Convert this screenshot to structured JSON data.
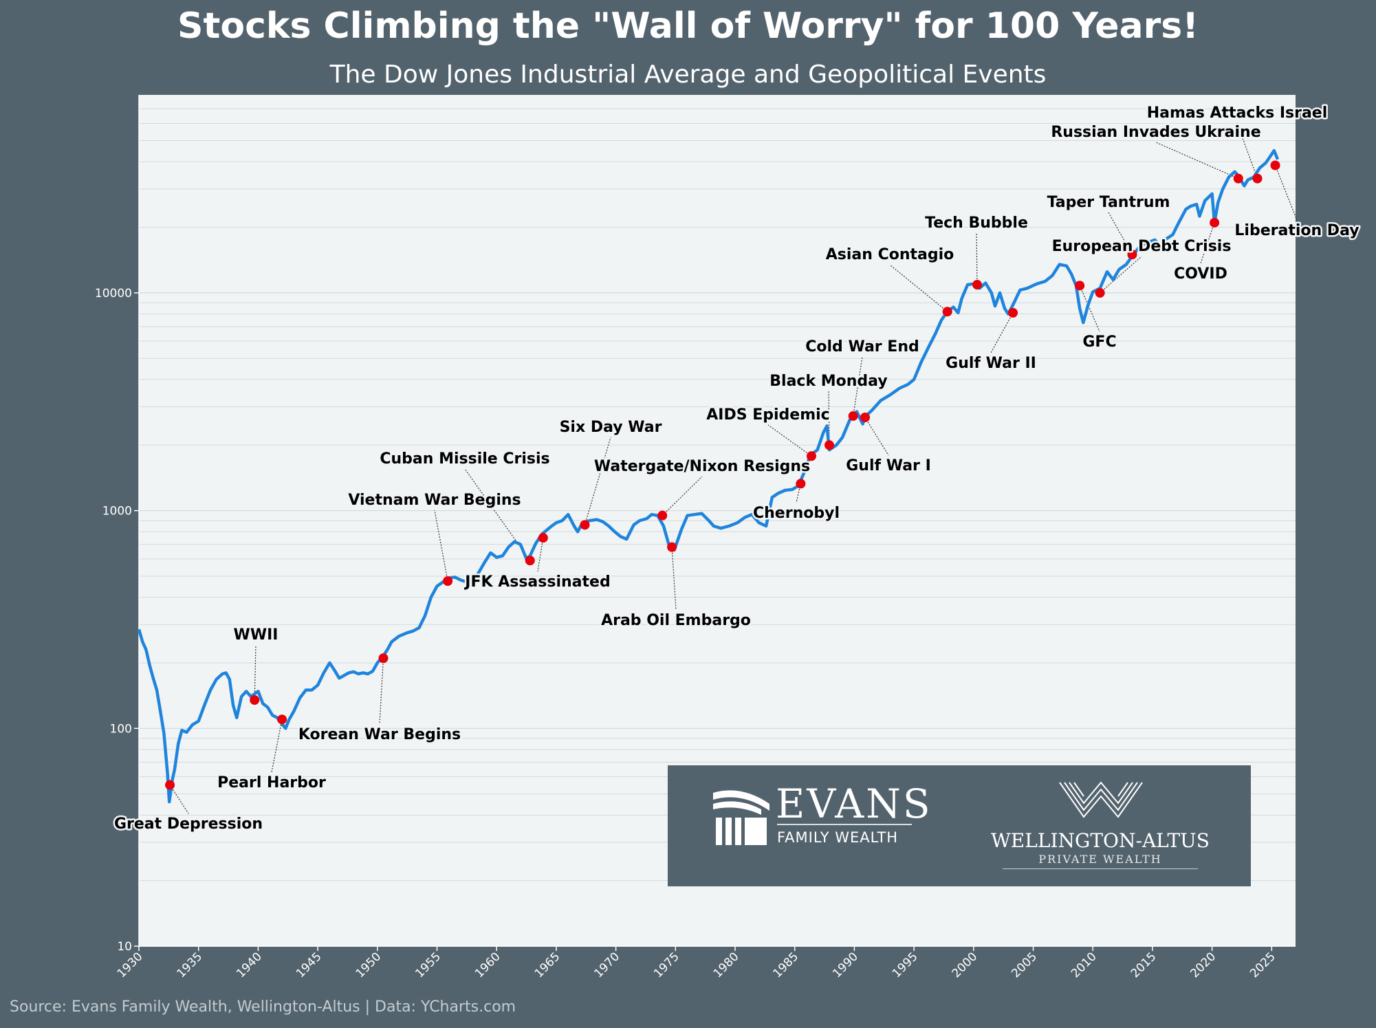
{
  "title": "Stocks Climbing the \"Wall of Worry\" for 100 Years!",
  "subtitle": "The Dow Jones Industrial Average and Geopolitical Events",
  "source": "Source: Evans Family Wealth, Wellington-Altus | Data: YCharts.com",
  "colors": {
    "background": "#53636d",
    "plot_background": "#f1f4f5",
    "line": "#1f84db",
    "event_marker": "#e8000b",
    "grid": "#d3d9dc"
  },
  "logos": {
    "evans": {
      "name": "EVANS",
      "subtitle": "FAMILY WEALTH",
      "icon": "columns-logo-icon"
    },
    "wellington": {
      "name": "WELLINGTON-ALTUS",
      "subtitle": "PRIVATE WEALTH",
      "icon": "chevron-crest-logo-icon"
    }
  },
  "chart_data": {
    "type": "line",
    "title": "Stocks Climbing the \"Wall of Worry\" for 100 Years!",
    "subtitle": "The Dow Jones Industrial Average and Geopolitical Events",
    "xlabel": "",
    "ylabel": "",
    "y_scale": "log",
    "xlim": [
      1930,
      2027
    ],
    "ylim": [
      10,
      70000
    ],
    "x_ticks": [
      1930,
      1935,
      1940,
      1945,
      1950,
      1955,
      1960,
      1965,
      1970,
      1975,
      1980,
      1985,
      1990,
      1995,
      2000,
      2005,
      2010,
      2015,
      2020,
      2025
    ],
    "y_ticks": [
      10,
      100,
      1000,
      10000
    ],
    "grid": true,
    "series": [
      {
        "x": [
          1930.0,
          1930.3,
          1930.6,
          1930.9,
          1931.2,
          1931.5,
          1931.8,
          1932.1,
          1932.4,
          1932.55,
          1932.8,
          1933.0,
          1933.3,
          1933.6,
          1934.0,
          1934.5,
          1935.0,
          1935.5,
          1936.0,
          1936.5,
          1937.0,
          1937.3,
          1937.6,
          1937.9,
          1938.2,
          1938.6,
          1939.0,
          1939.4,
          1939.7,
          1940.0,
          1940.4,
          1940.8,
          1941.2,
          1941.6,
          1942.0,
          1942.3,
          1942.6,
          1943.0,
          1943.5,
          1944.0,
          1944.5,
          1945.0,
          1945.5,
          1946.0,
          1946.4,
          1946.8,
          1947.2,
          1947.6,
          1948.0,
          1948.4,
          1948.8,
          1949.2,
          1949.6,
          1950.0,
          1950.4,
          1950.8,
          1951.2,
          1951.8,
          1952.5,
          1953.0,
          1953.5,
          1954.0,
          1954.5,
          1955.0,
          1955.5,
          1956.0,
          1956.5,
          1957.0,
          1957.5,
          1957.9,
          1958.5,
          1959.0,
          1959.5,
          1960.0,
          1960.5,
          1961.0,
          1961.5,
          1962.0,
          1962.5,
          1962.8,
          1963.3,
          1963.8,
          1964.5,
          1965.0,
          1965.5,
          1966.0,
          1966.5,
          1966.8,
          1967.2,
          1967.8,
          1968.4,
          1968.9,
          1969.4,
          1969.9,
          1970.4,
          1970.9,
          1971.5,
          1972.0,
          1972.6,
          1973.0,
          1973.5,
          1974.0,
          1974.5,
          1974.9,
          1975.5,
          1976.0,
          1976.6,
          1977.2,
          1977.8,
          1978.2,
          1978.8,
          1979.5,
          1980.2,
          1980.8,
          1981.4,
          1982.0,
          1982.6,
          1983.1,
          1983.6,
          1984.2,
          1984.8,
          1985.3,
          1985.8,
          1986.3,
          1986.9,
          1987.4,
          1987.7,
          1987.9,
          1988.5,
          1989.0,
          1989.6,
          1990.2,
          1990.7,
          1990.9,
          1991.5,
          1992.2,
          1993.0,
          1993.8,
          1994.5,
          1995.0,
          1995.6,
          1996.2,
          1996.8,
          1997.3,
          1997.8,
          1998.3,
          1998.7,
          1999.0,
          1999.5,
          2000.0,
          2000.5,
          2001.0,
          2001.5,
          2001.8,
          2002.2,
          2002.6,
          2002.9,
          2003.3,
          2003.9,
          2004.5,
          2005.3,
          2006.0,
          2006.6,
          2007.2,
          2007.8,
          2008.2,
          2008.6,
          2008.9,
          2009.2,
          2009.6,
          2010.0,
          2010.6,
          2011.2,
          2011.7,
          2012.2,
          2012.8,
          2013.4,
          2014.0,
          2014.6,
          2015.2,
          2015.7,
          2016.1,
          2016.7,
          2017.2,
          2017.8,
          2018.2,
          2018.7,
          2018.95,
          2019.4,
          2020.0,
          2020.2,
          2020.5,
          2020.9,
          2021.4,
          2021.9,
          2022.2,
          2022.7,
          2023.0,
          2023.5,
          2024.0,
          2024.5,
          2024.9,
          2025.2,
          2025.5
        ],
        "y": [
          285,
          250,
          230,
          195,
          170,
          150,
          120,
          95,
          62,
          46,
          58,
          65,
          85,
          98,
          96,
          104,
          108,
          128,
          150,
          168,
          178,
          180,
          168,
          128,
          112,
          140,
          148,
          140,
          144,
          148,
          130,
          125,
          115,
          112,
          105,
          100,
          110,
          120,
          138,
          150,
          150,
          158,
          180,
          200,
          185,
          170,
          175,
          180,
          182,
          178,
          180,
          178,
          183,
          200,
          212,
          228,
          250,
          265,
          275,
          280,
          290,
          330,
          400,
          450,
          470,
          490,
          495,
          480,
          470,
          460,
          520,
          580,
          640,
          610,
          620,
          680,
          720,
          700,
          600,
          620,
          710,
          780,
          840,
          880,
          900,
          960,
          850,
          800,
          880,
          900,
          910,
          890,
          850,
          800,
          760,
          740,
          860,
          900,
          920,
          960,
          950,
          850,
          680,
          660,
          820,
          950,
          960,
          970,
          900,
          850,
          830,
          850,
          880,
          930,
          960,
          880,
          850,
          1150,
          1200,
          1240,
          1250,
          1300,
          1500,
          1800,
          1900,
          2280,
          2450,
          1900,
          2000,
          2170,
          2600,
          2850,
          2500,
          2700,
          2900,
          3200,
          3400,
          3650,
          3800,
          4000,
          4800,
          5600,
          6500,
          7500,
          8200,
          8600,
          8100,
          9400,
          10900,
          11000,
          10500,
          11100,
          10000,
          8700,
          10000,
          8500,
          8000,
          8800,
          10300,
          10500,
          11000,
          11300,
          12000,
          13500,
          13300,
          12200,
          10800,
          8500,
          7300,
          8800,
          10100,
          10500,
          12500,
          11500,
          12800,
          13500,
          15000,
          16500,
          17000,
          17500,
          16400,
          17600,
          18500,
          21000,
          24200,
          25000,
          25500,
          22500,
          26500,
          28500,
          21000,
          26000,
          30000,
          34000,
          36000,
          34500,
          31000,
          33000,
          34000,
          37500,
          39500,
          42500,
          45000,
          41000
        ]
      }
    ],
    "events": [
      {
        "label": "Great Depression",
        "x": 1932.6,
        "y": 55
      },
      {
        "label": "WWII",
        "x": 1939.7,
        "y": 135
      },
      {
        "label": "Pearl Harbor",
        "x": 1942.0,
        "y": 110
      },
      {
        "label": "Korean War Begins",
        "x": 1950.5,
        "y": 210
      },
      {
        "label": "Vietnam War Begins",
        "x": 1955.9,
        "y": 475
      },
      {
        "label": "Cuban Missile Crisis",
        "x": 1962.8,
        "y": 590
      },
      {
        "label": "JFK Assassinated",
        "x": 1963.9,
        "y": 750
      },
      {
        "label": "Six Day War",
        "x": 1967.4,
        "y": 860
      },
      {
        "label": "Watergate/Nixon Resigns",
        "x": 1973.9,
        "y": 950
      },
      {
        "label": "Arab Oil Embargo",
        "x": 1974.7,
        "y": 680
      },
      {
        "label": "Chernobyl",
        "x": 1985.5,
        "y": 1330
      },
      {
        "label": "AIDS Epidemic",
        "x": 1986.4,
        "y": 1780
      },
      {
        "label": "Black Monday",
        "x": 1987.9,
        "y": 2000
      },
      {
        "label": "Cold War End",
        "x": 1989.9,
        "y": 2720
      },
      {
        "label": "Gulf War I",
        "x": 1990.9,
        "y": 2680
      },
      {
        "label": "Asian Contagio",
        "x": 1997.8,
        "y": 8200
      },
      {
        "label": "Tech Bubble",
        "x": 2000.3,
        "y": 10900
      },
      {
        "label": "Gulf War II",
        "x": 2003.3,
        "y": 8100
      },
      {
        "label": "GFC",
        "x": 2008.9,
        "y": 10800
      },
      {
        "label": "European Debt Crisis",
        "x": 2010.6,
        "y": 10000
      },
      {
        "label": "Taper Tantrum",
        "x": 2013.3,
        "y": 15000
      },
      {
        "label": "COVID",
        "x": 2020.2,
        "y": 21000
      },
      {
        "label": "Russian Invades Ukraine",
        "x": 2022.2,
        "y": 33500
      },
      {
        "label": "Hamas Attacks Israel",
        "x": 2023.8,
        "y": 33500
      },
      {
        "label": "Liberation Day",
        "x": 2025.3,
        "y": 38500
      }
    ]
  }
}
